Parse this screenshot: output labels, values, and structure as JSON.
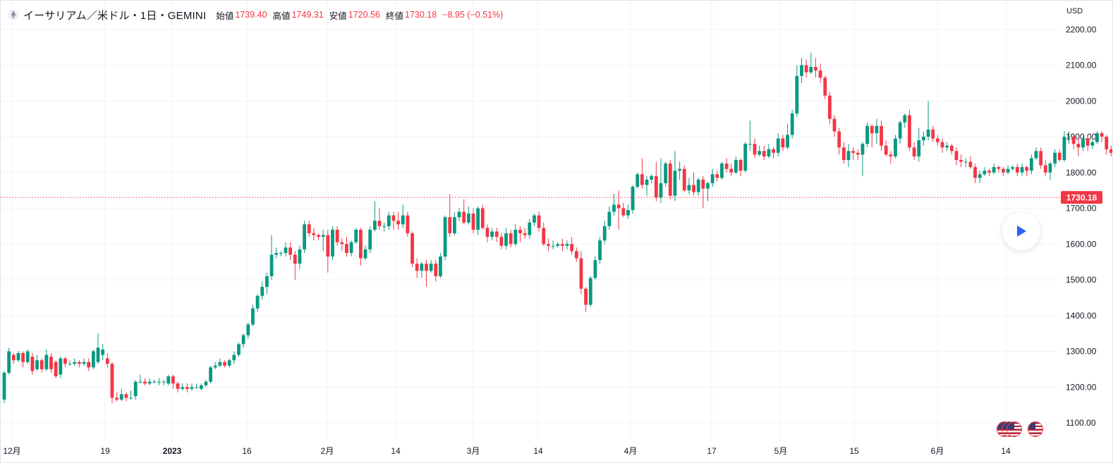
{
  "header": {
    "title": "イーサリアム／米ドル・1日・GEMINI",
    "ohlc": [
      {
        "label": "始値",
        "value": "1739.40"
      },
      {
        "label": "高値",
        "value": "1749.31"
      },
      {
        "label": "安値",
        "value": "1720.56"
      },
      {
        "label": "終値",
        "value": "1730.18"
      }
    ],
    "change": "−8.95 (−0.51%)"
  },
  "axis": {
    "currency": "USD",
    "price_labels": [
      "2200.00",
      "2100.00",
      "2000.00",
      "1900.00",
      "1800.00",
      "1700.00",
      "1600.00",
      "1500.00",
      "1400.00",
      "1300.00",
      "1200.00",
      "1100.00"
    ],
    "current_price": "1730.18",
    "time_labels": [
      "12月",
      "19",
      "2023",
      "16",
      "2月",
      "14",
      "3月",
      "14",
      "4月",
      "17",
      "5月",
      "15",
      "6月",
      "14"
    ]
  },
  "colors": {
    "up": "#089981",
    "down": "#f23645",
    "grid": "#f0f3fa",
    "text": "#131722"
  },
  "icons": {
    "asset": "ethereum-icon",
    "play": "play-icon",
    "events": "us-flag-icon"
  },
  "chart_data": {
    "type": "candlestick",
    "title": "イーサリアム／米ドル・1日・GEMINI",
    "ylabel": "USD",
    "ylim": [
      1060,
      2230
    ],
    "current": 1730.18,
    "ticks": [
      2200,
      2100,
      2000,
      1900,
      1800,
      1700,
      1600,
      1500,
      1400,
      1300,
      1200,
      1100
    ],
    "candles": [
      [
        1165,
        1240,
        1155,
        1245
      ],
      [
        1240,
        1300,
        1235,
        1310
      ],
      [
        1290,
        1275,
        1265,
        1295
      ],
      [
        1275,
        1295,
        1270,
        1300
      ],
      [
        1295,
        1270,
        1255,
        1300
      ],
      [
        1270,
        1300,
        1265,
        1305
      ],
      [
        1285,
        1245,
        1235,
        1295
      ],
      [
        1250,
        1275,
        1245,
        1290
      ],
      [
        1275,
        1250,
        1240,
        1280
      ],
      [
        1250,
        1290,
        1245,
        1305
      ],
      [
        1285,
        1250,
        1240,
        1295
      ],
      [
        1270,
        1230,
        1225,
        1275
      ],
      [
        1235,
        1280,
        1225,
        1285
      ],
      [
        1280,
        1265,
        1255,
        1285
      ],
      [
        1265,
        1265,
        1260,
        1275
      ],
      [
        1265,
        1270,
        1260,
        1280
      ],
      [
        1270,
        1265,
        1255,
        1275
      ],
      [
        1265,
        1270,
        1260,
        1280
      ],
      [
        1270,
        1255,
        1245,
        1280
      ],
      [
        1255,
        1300,
        1250,
        1305
      ],
      [
        1270,
        1310,
        1265,
        1350
      ],
      [
        1290,
        1305,
        1275,
        1320
      ],
      [
        1280,
        1265,
        1255,
        1295
      ],
      [
        1265,
        1170,
        1155,
        1270
      ],
      [
        1170,
        1165,
        1160,
        1185
      ],
      [
        1165,
        1180,
        1160,
        1195
      ],
      [
        1180,
        1170,
        1160,
        1185
      ],
      [
        1170,
        1170,
        1165,
        1190
      ],
      [
        1175,
        1215,
        1165,
        1220
      ],
      [
        1215,
        1215,
        1210,
        1235
      ],
      [
        1215,
        1210,
        1205,
        1225
      ],
      [
        1210,
        1215,
        1205,
        1225
      ],
      [
        1215,
        1215,
        1210,
        1220
      ],
      [
        1215,
        1215,
        1205,
        1225
      ],
      [
        1215,
        1215,
        1205,
        1220
      ],
      [
        1210,
        1230,
        1205,
        1235
      ],
      [
        1230,
        1210,
        1195,
        1235
      ],
      [
        1210,
        1195,
        1185,
        1215
      ],
      [
        1195,
        1200,
        1190,
        1210
      ],
      [
        1200,
        1195,
        1185,
        1210
      ],
      [
        1195,
        1200,
        1190,
        1210
      ],
      [
        1200,
        1200,
        1195,
        1210
      ],
      [
        1195,
        1205,
        1190,
        1210
      ],
      [
        1205,
        1215,
        1200,
        1220
      ],
      [
        1215,
        1255,
        1210,
        1260
      ],
      [
        1255,
        1260,
        1250,
        1270
      ],
      [
        1260,
        1270,
        1255,
        1280
      ],
      [
        1270,
        1260,
        1255,
        1275
      ],
      [
        1260,
        1275,
        1255,
        1280
      ],
      [
        1275,
        1290,
        1265,
        1300
      ],
      [
        1290,
        1320,
        1285,
        1325
      ],
      [
        1320,
        1345,
        1310,
        1350
      ],
      [
        1345,
        1375,
        1335,
        1380
      ],
      [
        1375,
        1420,
        1370,
        1430
      ],
      [
        1420,
        1455,
        1410,
        1460
      ],
      [
        1455,
        1480,
        1445,
        1495
      ],
      [
        1480,
        1510,
        1460,
        1520
      ],
      [
        1510,
        1570,
        1500,
        1625
      ],
      [
        1570,
        1575,
        1560,
        1590
      ],
      [
        1575,
        1575,
        1565,
        1580
      ],
      [
        1575,
        1590,
        1565,
        1605
      ],
      [
        1590,
        1570,
        1555,
        1605
      ],
      [
        1570,
        1545,
        1500,
        1580
      ],
      [
        1545,
        1585,
        1530,
        1595
      ],
      [
        1585,
        1655,
        1575,
        1665
      ],
      [
        1655,
        1630,
        1620,
        1665
      ],
      [
        1630,
        1625,
        1610,
        1645
      ],
      [
        1625,
        1620,
        1610,
        1630
      ],
      [
        1620,
        1625,
        1580,
        1640
      ],
      [
        1625,
        1565,
        1520,
        1640
      ],
      [
        1565,
        1640,
        1555,
        1650
      ],
      [
        1640,
        1605,
        1595,
        1650
      ],
      [
        1605,
        1600,
        1580,
        1615
      ],
      [
        1600,
        1575,
        1565,
        1620
      ],
      [
        1575,
        1605,
        1565,
        1610
      ],
      [
        1605,
        1640,
        1600,
        1645
      ],
      [
        1640,
        1560,
        1540,
        1645
      ],
      [
        1560,
        1585,
        1555,
        1595
      ],
      [
        1585,
        1640,
        1575,
        1650
      ],
      [
        1640,
        1665,
        1635,
        1720
      ],
      [
        1665,
        1650,
        1640,
        1700
      ],
      [
        1650,
        1650,
        1635,
        1660
      ],
      [
        1650,
        1680,
        1640,
        1690
      ],
      [
        1680,
        1665,
        1640,
        1690
      ],
      [
        1665,
        1655,
        1640,
        1690
      ],
      [
        1655,
        1680,
        1645,
        1710
      ],
      [
        1680,
        1630,
        1620,
        1690
      ],
      [
        1630,
        1545,
        1535,
        1635
      ],
      [
        1545,
        1525,
        1505,
        1560
      ],
      [
        1525,
        1545,
        1505,
        1550
      ],
      [
        1545,
        1525,
        1480,
        1555
      ],
      [
        1525,
        1545,
        1520,
        1555
      ],
      [
        1545,
        1510,
        1495,
        1555
      ],
      [
        1510,
        1565,
        1505,
        1575
      ],
      [
        1565,
        1675,
        1555,
        1680
      ],
      [
        1675,
        1630,
        1620,
        1740
      ],
      [
        1630,
        1675,
        1625,
        1690
      ],
      [
        1675,
        1690,
        1665,
        1700
      ],
      [
        1690,
        1660,
        1655,
        1725
      ],
      [
        1660,
        1685,
        1655,
        1705
      ],
      [
        1685,
        1640,
        1630,
        1700
      ],
      [
        1640,
        1700,
        1625,
        1705
      ],
      [
        1700,
        1645,
        1640,
        1710
      ],
      [
        1645,
        1620,
        1605,
        1655
      ],
      [
        1620,
        1635,
        1610,
        1645
      ],
      [
        1635,
        1620,
        1605,
        1645
      ],
      [
        1620,
        1595,
        1585,
        1630
      ],
      [
        1595,
        1630,
        1585,
        1645
      ],
      [
        1630,
        1600,
        1590,
        1640
      ],
      [
        1600,
        1640,
        1595,
        1655
      ],
      [
        1640,
        1630,
        1605,
        1650
      ],
      [
        1630,
        1625,
        1615,
        1645
      ],
      [
        1625,
        1660,
        1615,
        1670
      ],
      [
        1660,
        1680,
        1650,
        1685
      ],
      [
        1680,
        1645,
        1635,
        1690
      ],
      [
        1645,
        1600,
        1595,
        1660
      ],
      [
        1600,
        1595,
        1580,
        1615
      ],
      [
        1595,
        1595,
        1585,
        1610
      ],
      [
        1595,
        1600,
        1590,
        1605
      ],
      [
        1600,
        1595,
        1580,
        1615
      ],
      [
        1595,
        1600,
        1585,
        1610
      ],
      [
        1600,
        1580,
        1570,
        1620
      ],
      [
        1580,
        1560,
        1550,
        1590
      ],
      [
        1560,
        1475,
        1460,
        1580
      ],
      [
        1475,
        1430,
        1410,
        1480
      ],
      [
        1430,
        1505,
        1425,
        1510
      ],
      [
        1505,
        1555,
        1500,
        1565
      ],
      [
        1555,
        1610,
        1545,
        1620
      ],
      [
        1610,
        1650,
        1600,
        1665
      ],
      [
        1650,
        1690,
        1640,
        1705
      ],
      [
        1690,
        1710,
        1680,
        1740
      ],
      [
        1710,
        1700,
        1640,
        1750
      ],
      [
        1700,
        1680,
        1675,
        1715
      ],
      [
        1680,
        1695,
        1670,
        1710
      ],
      [
        1695,
        1760,
        1685,
        1765
      ],
      [
        1760,
        1795,
        1755,
        1800
      ],
      [
        1795,
        1765,
        1755,
        1840
      ],
      [
        1765,
        1780,
        1735,
        1790
      ],
      [
        1780,
        1790,
        1770,
        1795
      ],
      [
        1790,
        1730,
        1720,
        1830
      ],
      [
        1730,
        1770,
        1715,
        1840
      ],
      [
        1770,
        1825,
        1760,
        1830
      ],
      [
        1825,
        1735,
        1725,
        1835
      ],
      [
        1735,
        1805,
        1720,
        1860
      ],
      [
        1805,
        1810,
        1780,
        1830
      ],
      [
        1810,
        1750,
        1745,
        1820
      ],
      [
        1750,
        1765,
        1740,
        1785
      ],
      [
        1765,
        1745,
        1735,
        1800
      ],
      [
        1745,
        1780,
        1735,
        1785
      ],
      [
        1780,
        1755,
        1700,
        1790
      ],
      [
        1755,
        1770,
        1720,
        1775
      ],
      [
        1770,
        1795,
        1760,
        1810
      ],
      [
        1795,
        1785,
        1775,
        1805
      ],
      [
        1785,
        1825,
        1780,
        1830
      ],
      [
        1825,
        1810,
        1800,
        1840
      ],
      [
        1810,
        1800,
        1790,
        1825
      ],
      [
        1800,
        1835,
        1795,
        1845
      ],
      [
        1835,
        1805,
        1790,
        1840
      ],
      [
        1805,
        1880,
        1800,
        1885
      ],
      [
        1880,
        1880,
        1860,
        1945
      ],
      [
        1880,
        1850,
        1840,
        1895
      ],
      [
        1850,
        1860,
        1845,
        1875
      ],
      [
        1860,
        1845,
        1835,
        1875
      ],
      [
        1845,
        1865,
        1840,
        1880
      ],
      [
        1865,
        1855,
        1840,
        1870
      ],
      [
        1855,
        1895,
        1845,
        1910
      ],
      [
        1895,
        1870,
        1860,
        1905
      ],
      [
        1870,
        1905,
        1865,
        1935
      ],
      [
        1905,
        1965,
        1895,
        1975
      ],
      [
        1965,
        2070,
        1955,
        2100
      ],
      [
        2070,
        2100,
        2050,
        2120
      ],
      [
        2100,
        2080,
        2065,
        2115
      ],
      [
        2080,
        2095,
        2075,
        2135
      ],
      [
        2095,
        2085,
        2065,
        2120
      ],
      [
        2085,
        2065,
        2050,
        2105
      ],
      [
        2065,
        2015,
        2005,
        2070
      ],
      [
        2015,
        1950,
        1935,
        2025
      ],
      [
        1950,
        1915,
        1900,
        1960
      ],
      [
        1915,
        1870,
        1850,
        1925
      ],
      [
        1870,
        1835,
        1825,
        1885
      ],
      [
        1835,
        1860,
        1815,
        1880
      ],
      [
        1860,
        1855,
        1835,
        1870
      ],
      [
        1855,
        1850,
        1835,
        1865
      ],
      [
        1850,
        1880,
        1790,
        1885
      ],
      [
        1880,
        1930,
        1870,
        1940
      ],
      [
        1930,
        1910,
        1870,
        1935
      ],
      [
        1910,
        1930,
        1880,
        1950
      ],
      [
        1930,
        1875,
        1860,
        1945
      ],
      [
        1875,
        1850,
        1845,
        1890
      ],
      [
        1850,
        1845,
        1825,
        1860
      ],
      [
        1845,
        1895,
        1840,
        1905
      ],
      [
        1895,
        1940,
        1880,
        1945
      ],
      [
        1940,
        1960,
        1925,
        1965
      ],
      [
        1960,
        1870,
        1860,
        1975
      ],
      [
        1870,
        1845,
        1835,
        1885
      ],
      [
        1845,
        1890,
        1830,
        1925
      ],
      [
        1890,
        1900,
        1875,
        1915
      ],
      [
        1900,
        1920,
        1890,
        2000
      ],
      [
        1920,
        1895,
        1885,
        1930
      ],
      [
        1895,
        1885,
        1875,
        1905
      ],
      [
        1885,
        1870,
        1855,
        1895
      ],
      [
        1870,
        1875,
        1860,
        1885
      ],
      [
        1875,
        1860,
        1850,
        1880
      ],
      [
        1860,
        1835,
        1820,
        1870
      ],
      [
        1835,
        1830,
        1815,
        1850
      ],
      [
        1830,
        1830,
        1815,
        1840
      ],
      [
        1830,
        1815,
        1810,
        1845
      ],
      [
        1815,
        1785,
        1770,
        1825
      ],
      [
        1785,
        1795,
        1770,
        1805
      ],
      [
        1795,
        1805,
        1790,
        1815
      ],
      [
        1805,
        1800,
        1790,
        1810
      ],
      [
        1800,
        1815,
        1795,
        1825
      ],
      [
        1815,
        1810,
        1800,
        1820
      ],
      [
        1810,
        1800,
        1790,
        1815
      ],
      [
        1800,
        1810,
        1795,
        1820
      ],
      [
        1810,
        1815,
        1805,
        1820
      ],
      [
        1815,
        1800,
        1790,
        1825
      ],
      [
        1800,
        1815,
        1790,
        1825
      ],
      [
        1815,
        1805,
        1790,
        1820
      ],
      [
        1805,
        1840,
        1795,
        1850
      ],
      [
        1840,
        1860,
        1835,
        1870
      ],
      [
        1860,
        1820,
        1810,
        1870
      ],
      [
        1820,
        1800,
        1790,
        1835
      ],
      [
        1800,
        1825,
        1780,
        1830
      ],
      [
        1825,
        1855,
        1815,
        1865
      ],
      [
        1855,
        1835,
        1830,
        1865
      ],
      [
        1835,
        1900,
        1830,
        1915
      ],
      [
        1900,
        1900,
        1880,
        1915
      ],
      [
        1900,
        1880,
        1865,
        1905
      ],
      [
        1880,
        1870,
        1845,
        1895
      ],
      [
        1870,
        1895,
        1860,
        1900
      ],
      [
        1895,
        1875,
        1860,
        1905
      ],
      [
        1875,
        1885,
        1865,
        1895
      ],
      [
        1885,
        1910,
        1880,
        1915
      ],
      [
        1910,
        1900,
        1885,
        1915
      ],
      [
        1900,
        1865,
        1850,
        1905
      ],
      [
        1865,
        1855,
        1845,
        1875
      ],
      [
        1855,
        1855,
        1840,
        1865
      ],
      [
        1855,
        1850,
        1840,
        1870
      ],
      [
        1850,
        1855,
        1845,
        1860
      ],
      [
        1855,
        1885,
        1850,
        1895
      ],
      [
        1885,
        1900,
        1875,
        1905
      ],
      [
        1900,
        1880,
        1865,
        1905
      ],
      [
        1880,
        1850,
        1785,
        1895
      ],
      [
        1850,
        1835,
        1820,
        1865
      ],
      [
        1835,
        1840,
        1830,
        1845
      ],
      [
        1840,
        1850,
        1835,
        1860
      ],
      [
        1850,
        1785,
        1770,
        1855
      ],
      [
        1785,
        1760,
        1750,
        1790
      ],
      [
        1760,
        1740,
        1730,
        1765
      ],
      [
        1740,
        1755,
        1725,
        1760
      ],
      [
        1755,
        1745,
        1735,
        1760
      ],
      [
        1745,
        1735,
        1725,
        1755
      ],
      [
        1739.4,
        1730.18,
        1720.56,
        1749.31
      ]
    ]
  }
}
